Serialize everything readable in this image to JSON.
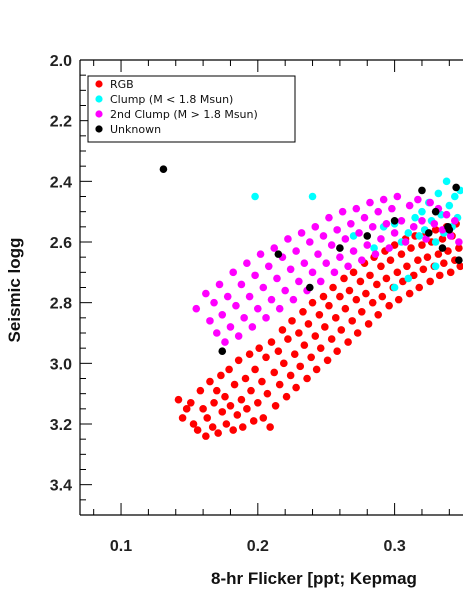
{
  "chart_data": {
    "type": "scatter",
    "xlabel": "8-hr Flicker [ppt; Kepmag",
    "ylabel": "Seismic logg",
    "xlim": [
      0.07,
      0.35
    ],
    "ylim": [
      2.0,
      3.5
    ],
    "y_inverted": true,
    "x_ticks": [
      "0.1",
      "0.2",
      "0.3"
    ],
    "y_ticks": [
      "2.0",
      "2.2",
      "2.4",
      "2.6",
      "2.8",
      "3.0",
      "3.2",
      "3.4"
    ],
    "legend_position": "top-left",
    "series": [
      {
        "name": "RGB",
        "color": "#ff0000",
        "points": [
          [
            0.142,
            3.12
          ],
          [
            0.145,
            3.18
          ],
          [
            0.148,
            3.15
          ],
          [
            0.151,
            3.13
          ],
          [
            0.153,
            3.2
          ],
          [
            0.156,
            3.22
          ],
          [
            0.158,
            3.09
          ],
          [
            0.16,
            3.15
          ],
          [
            0.162,
            3.24
          ],
          [
            0.163,
            3.18
          ],
          [
            0.165,
            3.06
          ],
          [
            0.167,
            3.21
          ],
          [
            0.168,
            3.13
          ],
          [
            0.17,
            3.09
          ],
          [
            0.171,
            3.23
          ],
          [
            0.173,
            3.04
          ],
          [
            0.174,
            3.16
          ],
          [
            0.176,
            3.11
          ],
          [
            0.177,
            3.2
          ],
          [
            0.179,
            3.02
          ],
          [
            0.18,
            3.14
          ],
          [
            0.182,
            3.22
          ],
          [
            0.183,
            3.07
          ],
          [
            0.185,
            3.17
          ],
          [
            0.186,
            2.99
          ],
          [
            0.188,
            3.12
          ],
          [
            0.189,
            3.21
          ],
          [
            0.191,
            3.05
          ],
          [
            0.192,
            3.15
          ],
          [
            0.194,
            2.97
          ],
          [
            0.195,
            3.09
          ],
          [
            0.197,
            3.19
          ],
          [
            0.198,
            3.02
          ],
          [
            0.2,
            3.13
          ],
          [
            0.201,
            2.95
          ],
          [
            0.203,
            3.06
          ],
          [
            0.204,
            3.18
          ],
          [
            0.206,
            2.98
          ],
          [
            0.207,
            3.1
          ],
          [
            0.209,
            3.21
          ],
          [
            0.21,
            2.93
          ],
          [
            0.212,
            3.03
          ],
          [
            0.213,
            3.14
          ],
          [
            0.215,
            2.96
          ],
          [
            0.216,
            3.07
          ],
          [
            0.218,
            2.89
          ],
          [
            0.219,
            3.0
          ],
          [
            0.221,
            3.11
          ],
          [
            0.222,
            2.92
          ],
          [
            0.224,
            3.04
          ],
          [
            0.225,
            2.86
          ],
          [
            0.227,
            2.97
          ],
          [
            0.228,
            3.08
          ],
          [
            0.23,
            2.9
          ],
          [
            0.231,
            3.01
          ],
          [
            0.233,
            2.83
          ],
          [
            0.234,
            2.94
          ],
          [
            0.236,
            3.05
          ],
          [
            0.237,
            2.87
          ],
          [
            0.239,
            2.98
          ],
          [
            0.24,
            2.8
          ],
          [
            0.242,
            2.91
          ],
          [
            0.243,
            3.02
          ],
          [
            0.245,
            2.84
          ],
          [
            0.246,
            2.95
          ],
          [
            0.248,
            2.78
          ],
          [
            0.249,
            2.88
          ],
          [
            0.251,
            2.99
          ],
          [
            0.252,
            2.81
          ],
          [
            0.254,
            2.92
          ],
          [
            0.255,
            2.75
          ],
          [
            0.257,
            2.85
          ],
          [
            0.258,
            2.96
          ],
          [
            0.26,
            2.78
          ],
          [
            0.261,
            2.89
          ],
          [
            0.263,
            2.72
          ],
          [
            0.264,
            2.82
          ],
          [
            0.266,
            2.93
          ],
          [
            0.267,
            2.76
          ],
          [
            0.269,
            2.86
          ],
          [
            0.27,
            2.7
          ],
          [
            0.272,
            2.79
          ],
          [
            0.273,
            2.9
          ],
          [
            0.275,
            2.73
          ],
          [
            0.276,
            2.83
          ],
          [
            0.278,
            2.67
          ],
          [
            0.279,
            2.77
          ],
          [
            0.281,
            2.87
          ],
          [
            0.282,
            2.71
          ],
          [
            0.284,
            2.8
          ],
          [
            0.285,
            2.65
          ],
          [
            0.287,
            2.74
          ],
          [
            0.288,
            2.84
          ],
          [
            0.29,
            2.68
          ],
          [
            0.291,
            2.78
          ],
          [
            0.293,
            2.63
          ],
          [
            0.294,
            2.72
          ],
          [
            0.296,
            2.81
          ],
          [
            0.297,
            2.66
          ],
          [
            0.299,
            2.75
          ],
          [
            0.3,
            2.61
          ],
          [
            0.302,
            2.7
          ],
          [
            0.303,
            2.79
          ],
          [
            0.305,
            2.64
          ],
          [
            0.306,
            2.73
          ],
          [
            0.308,
            2.59
          ],
          [
            0.309,
            2.68
          ],
          [
            0.311,
            2.77
          ],
          [
            0.312,
            2.62
          ],
          [
            0.314,
            2.71
          ],
          [
            0.315,
            2.58
          ],
          [
            0.317,
            2.66
          ],
          [
            0.318,
            2.75
          ],
          [
            0.32,
            2.61
          ],
          [
            0.321,
            2.69
          ],
          [
            0.323,
            2.57
          ],
          [
            0.324,
            2.65
          ],
          [
            0.326,
            2.73
          ],
          [
            0.327,
            2.6
          ],
          [
            0.329,
            2.68
          ],
          [
            0.33,
            2.56
          ],
          [
            0.332,
            2.64
          ],
          [
            0.333,
            2.71
          ],
          [
            0.335,
            2.59
          ],
          [
            0.336,
            2.67
          ],
          [
            0.338,
            2.55
          ],
          [
            0.339,
            2.63
          ],
          [
            0.341,
            2.7
          ],
          [
            0.342,
            2.58
          ],
          [
            0.344,
            2.66
          ],
          [
            0.345,
            2.54
          ],
          [
            0.347,
            2.62
          ],
          [
            0.348,
            2.68
          ]
        ]
      },
      {
        "name": "Clump (M < 1.8 Msun)",
        "color": "#00ffff",
        "points": [
          [
            0.198,
            2.45
          ],
          [
            0.24,
            2.45
          ],
          [
            0.27,
            2.58
          ],
          [
            0.285,
            2.62
          ],
          [
            0.292,
            2.55
          ],
          [
            0.3,
            2.54
          ],
          [
            0.305,
            2.6
          ],
          [
            0.31,
            2.57
          ],
          [
            0.315,
            2.52
          ],
          [
            0.318,
            2.58
          ],
          [
            0.32,
            2.5
          ],
          [
            0.322,
            2.56
          ],
          [
            0.325,
            2.47
          ],
          [
            0.327,
            2.53
          ],
          [
            0.33,
            2.6
          ],
          [
            0.332,
            2.44
          ],
          [
            0.334,
            2.51
          ],
          [
            0.336,
            2.57
          ],
          [
            0.338,
            2.4
          ],
          [
            0.34,
            2.48
          ],
          [
            0.342,
            2.55
          ],
          [
            0.344,
            2.45
          ],
          [
            0.346,
            2.52
          ],
          [
            0.348,
            2.43
          ],
          [
            0.3,
            2.75
          ],
          [
            0.31,
            2.72
          ],
          [
            0.33,
            2.68
          ]
        ]
      },
      {
        "name": "2nd Clump (M > 1.8 Msun)",
        "color": "#ff00ff",
        "points": [
          [
            0.155,
            2.82
          ],
          [
            0.162,
            2.77
          ],
          [
            0.165,
            2.86
          ],
          [
            0.168,
            2.8
          ],
          [
            0.17,
            2.9
          ],
          [
            0.172,
            2.74
          ],
          [
            0.174,
            2.84
          ],
          [
            0.176,
            2.93
          ],
          [
            0.178,
            2.78
          ],
          [
            0.18,
            2.88
          ],
          [
            0.182,
            2.7
          ],
          [
            0.184,
            2.81
          ],
          [
            0.186,
            2.91
          ],
          [
            0.188,
            2.74
          ],
          [
            0.19,
            2.85
          ],
          [
            0.192,
            2.67
          ],
          [
            0.194,
            2.78
          ],
          [
            0.196,
            2.88
          ],
          [
            0.198,
            2.71
          ],
          [
            0.2,
            2.82
          ],
          [
            0.202,
            2.64
          ],
          [
            0.204,
            2.75
          ],
          [
            0.206,
            2.85
          ],
          [
            0.208,
            2.68
          ],
          [
            0.21,
            2.79
          ],
          [
            0.212,
            2.62
          ],
          [
            0.214,
            2.72
          ],
          [
            0.216,
            2.82
          ],
          [
            0.218,
            2.65
          ],
          [
            0.22,
            2.76
          ],
          [
            0.222,
            2.59
          ],
          [
            0.224,
            2.69
          ],
          [
            0.226,
            2.79
          ],
          [
            0.228,
            2.63
          ],
          [
            0.23,
            2.73
          ],
          [
            0.232,
            2.57
          ],
          [
            0.234,
            2.67
          ],
          [
            0.236,
            2.76
          ],
          [
            0.238,
            2.6
          ],
          [
            0.24,
            2.7
          ],
          [
            0.242,
            2.55
          ],
          [
            0.244,
            2.64
          ],
          [
            0.246,
            2.73
          ],
          [
            0.248,
            2.58
          ],
          [
            0.25,
            2.67
          ],
          [
            0.252,
            2.52
          ],
          [
            0.254,
            2.61
          ],
          [
            0.256,
            2.7
          ],
          [
            0.258,
            2.56
          ],
          [
            0.26,
            2.65
          ],
          [
            0.262,
            2.5
          ],
          [
            0.264,
            2.59
          ],
          [
            0.266,
            2.68
          ],
          [
            0.268,
            2.54
          ],
          [
            0.27,
            2.63
          ],
          [
            0.272,
            2.49
          ],
          [
            0.274,
            2.57
          ],
          [
            0.276,
            2.66
          ],
          [
            0.278,
            2.52
          ],
          [
            0.28,
            2.61
          ],
          [
            0.282,
            2.47
          ],
          [
            0.284,
            2.55
          ],
          [
            0.286,
            2.64
          ],
          [
            0.288,
            2.5
          ],
          [
            0.29,
            2.59
          ],
          [
            0.292,
            2.46
          ],
          [
            0.294,
            2.54
          ],
          [
            0.296,
            2.62
          ],
          [
            0.298,
            2.49
          ],
          [
            0.3,
            2.57
          ],
          [
            0.302,
            2.45
          ],
          [
            0.305,
            2.53
          ],
          [
            0.308,
            2.6
          ],
          [
            0.311,
            2.48
          ],
          [
            0.314,
            2.55
          ],
          [
            0.317,
            2.46
          ],
          [
            0.32,
            2.53
          ],
          [
            0.323,
            2.59
          ],
          [
            0.326,
            2.47
          ],
          [
            0.329,
            2.54
          ],
          [
            0.332,
            2.49
          ],
          [
            0.335,
            2.56
          ],
          [
            0.338,
            2.51
          ],
          [
            0.341,
            2.58
          ],
          [
            0.344,
            2.53
          ],
          [
            0.347,
            2.6
          ]
        ]
      },
      {
        "name": "Unknown",
        "color": "#000000",
        "points": [
          [
            0.131,
            2.36
          ],
          [
            0.174,
            2.96
          ],
          [
            0.215,
            2.64
          ],
          [
            0.238,
            2.75
          ],
          [
            0.26,
            2.62
          ],
          [
            0.28,
            2.58
          ],
          [
            0.3,
            2.53
          ],
          [
            0.32,
            2.43
          ],
          [
            0.325,
            2.57
          ],
          [
            0.33,
            2.5
          ],
          [
            0.335,
            2.62
          ],
          [
            0.34,
            2.56
          ],
          [
            0.345,
            2.42
          ],
          [
            0.347,
            2.66
          ],
          [
            0.339,
            2.55
          ]
        ]
      }
    ]
  }
}
